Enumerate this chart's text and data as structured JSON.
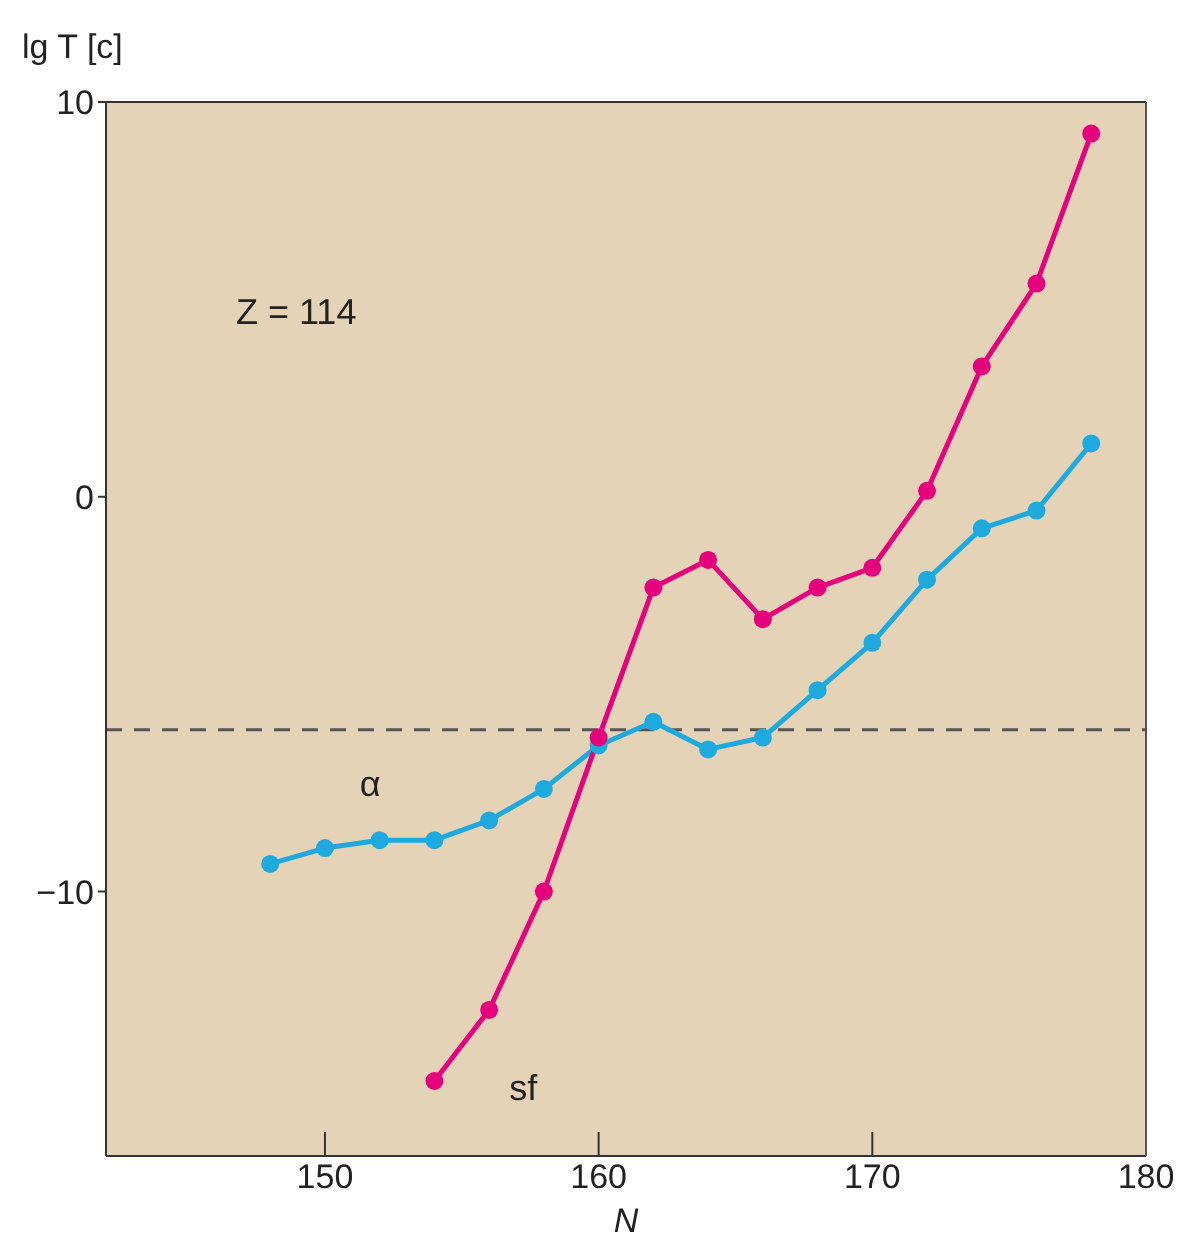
{
  "chart_data": {
    "type": "line",
    "xlabel": "N",
    "ylabel": "lg T [c]",
    "annotations": [
      "Z = 114"
    ],
    "x": [
      148,
      150,
      152,
      154,
      156,
      158,
      160,
      162,
      164,
      166,
      168,
      170,
      172,
      174,
      176,
      178
    ],
    "series": [
      {
        "name": "α",
        "color": "#1eaadf",
        "values": [
          -9.3,
          -8.9,
          -8.7,
          -8.7,
          -8.2,
          -7.4,
          -6.3,
          -5.7,
          -6.4,
          -6.1,
          -4.9,
          -3.7,
          -2.1,
          -0.8,
          -0.35,
          1.35
        ]
      },
      {
        "name": "sf",
        "color": "#e5007d",
        "x": [
          154,
          156,
          158,
          160,
          162,
          164,
          166,
          168,
          170,
          172,
          174,
          176,
          178
        ],
        "values": [
          -14.8,
          -13.0,
          -10.0,
          -6.1,
          -2.3,
          -1.6,
          -3.1,
          -2.3,
          -1.8,
          0.15,
          3.3,
          5.4,
          9.2
        ]
      }
    ],
    "xlim": [
      142,
      180
    ],
    "xticks": [
      150,
      160,
      170,
      180
    ],
    "ylim": [
      -16.7,
      10
    ],
    "yticks": [
      {
        "value": -10,
        "label": "−10"
      },
      0,
      10
    ],
    "ref_lines": [
      {
        "axis": "y",
        "value": -5.9,
        "color": "#555555",
        "line_style": "dashed"
      }
    ],
    "grid": false,
    "marker": "circle",
    "line_style": "solid"
  }
}
